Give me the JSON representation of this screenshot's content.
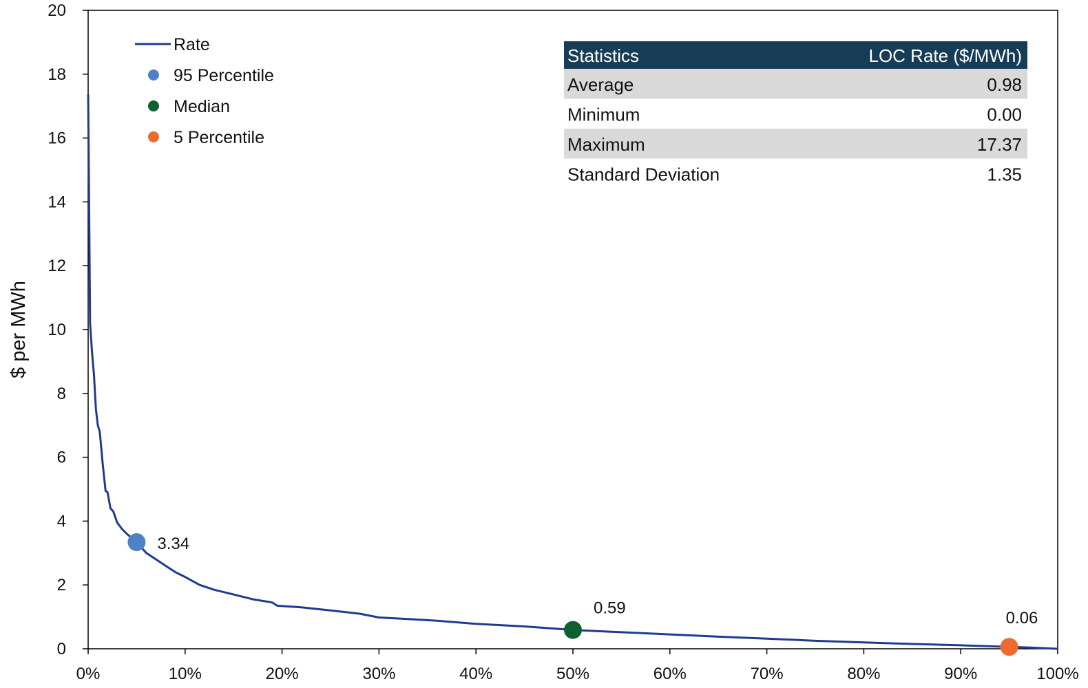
{
  "chart_data": {
    "type": "line",
    "title": "",
    "xlabel": "",
    "ylabel": "$ per MWh",
    "xlim": [
      0,
      100
    ],
    "ylim": [
      0,
      20
    ],
    "x_ticks": [
      0,
      10,
      20,
      30,
      40,
      50,
      60,
      70,
      80,
      90,
      100
    ],
    "x_tick_labels": [
      "0%",
      "10%",
      "20%",
      "30%",
      "40%",
      "50%",
      "60%",
      "70%",
      "80%",
      "90%",
      "100%"
    ],
    "y_ticks": [
      0,
      2,
      4,
      6,
      8,
      10,
      12,
      14,
      16,
      18,
      20
    ],
    "y_tick_labels": [
      "0",
      "2",
      "4",
      "6",
      "8",
      "10",
      "12",
      "14",
      "16",
      "18",
      "20"
    ],
    "grid": false,
    "legend_position": "top-left",
    "series": [
      {
        "name": "Rate",
        "color": "#1f3a93",
        "x": [
          0,
          0.1,
          0.2,
          0.4,
          0.6,
          0.8,
          1.0,
          1.2,
          1.5,
          1.8,
          2.0,
          2.3,
          2.6,
          3.0,
          3.5,
          4.0,
          5.0,
          6.0,
          7.0,
          8.0,
          9.0,
          10.0,
          11.5,
          13.0,
          15.0,
          17.0,
          19.0,
          19.5,
          22.0,
          25.0,
          28.0,
          30.0,
          33.0,
          36.0,
          40.0,
          45.0,
          50.0,
          55.0,
          60.0,
          65.0,
          70.0,
          75.0,
          80.0,
          85.0,
          90.0,
          95.0,
          97.0,
          100.0
        ],
        "y": [
          17.37,
          14.0,
          10.2,
          9.3,
          8.6,
          7.5,
          7.0,
          6.8,
          5.8,
          4.95,
          4.9,
          4.4,
          4.3,
          3.95,
          3.75,
          3.6,
          3.34,
          3.0,
          2.8,
          2.6,
          2.4,
          2.25,
          2.0,
          1.85,
          1.7,
          1.55,
          1.45,
          1.35,
          1.3,
          1.2,
          1.1,
          0.98,
          0.93,
          0.88,
          0.78,
          0.7,
          0.59,
          0.52,
          0.45,
          0.38,
          0.32,
          0.25,
          0.2,
          0.15,
          0.11,
          0.06,
          0.04,
          0.0
        ]
      }
    ],
    "markers": [
      {
        "name": "95 Percentile",
        "color": "#4f81c7",
        "x": 5,
        "y": 3.34,
        "label": "3.34"
      },
      {
        "name": "Median",
        "color": "#0e6032",
        "x": 50,
        "y": 0.59,
        "label": "0.59"
      },
      {
        "name": "5 Percentile",
        "color": "#ee6a2d",
        "x": 95,
        "y": 0.06,
        "label": "0.06"
      }
    ],
    "stats_table": {
      "headers": [
        "Statistics",
        "LOC Rate ($/MWh)"
      ],
      "rows": [
        [
          "Average",
          "0.98"
        ],
        [
          "Minimum",
          "0.00"
        ],
        [
          "Maximum",
          "17.37"
        ],
        [
          "Standard Deviation",
          "1.35"
        ]
      ],
      "header_color": "#173d56",
      "stripe_color": "#d9d9d9"
    }
  }
}
